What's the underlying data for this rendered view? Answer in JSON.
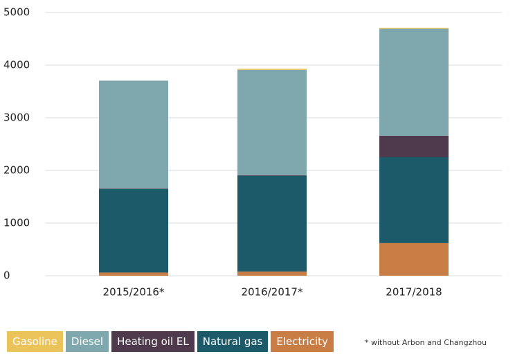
{
  "chart_data": {
    "type": "stacked-bar",
    "categories": [
      "2015/2016*",
      "2016/2017*",
      "2017/2018"
    ],
    "series": [
      {
        "name": "Electricity",
        "color": "#c87d45",
        "values": [
          60,
          80,
          620
        ]
      },
      {
        "name": "Natural gas",
        "color": "#1c5a6a",
        "values": [
          1585,
          1820,
          1630
        ]
      },
      {
        "name": "Heating oil EL",
        "color": "#4e3a4c",
        "values": [
          10,
          10,
          410
        ]
      },
      {
        "name": "Diesel",
        "color": "#7fa8ae",
        "values": [
          2050,
          2000,
          2030
        ]
      },
      {
        "name": "Gasoline",
        "color": "#eac45a",
        "values": [
          0,
          20,
          20
        ]
      }
    ],
    "legend_order": [
      4,
      3,
      2,
      1,
      0
    ],
    "ylim": [
      0,
      5000
    ],
    "yticks": [
      0,
      1000,
      2000,
      3000,
      4000,
      5000
    ],
    "grid": true,
    "footnote": "* without Arbon and Changzhou"
  }
}
